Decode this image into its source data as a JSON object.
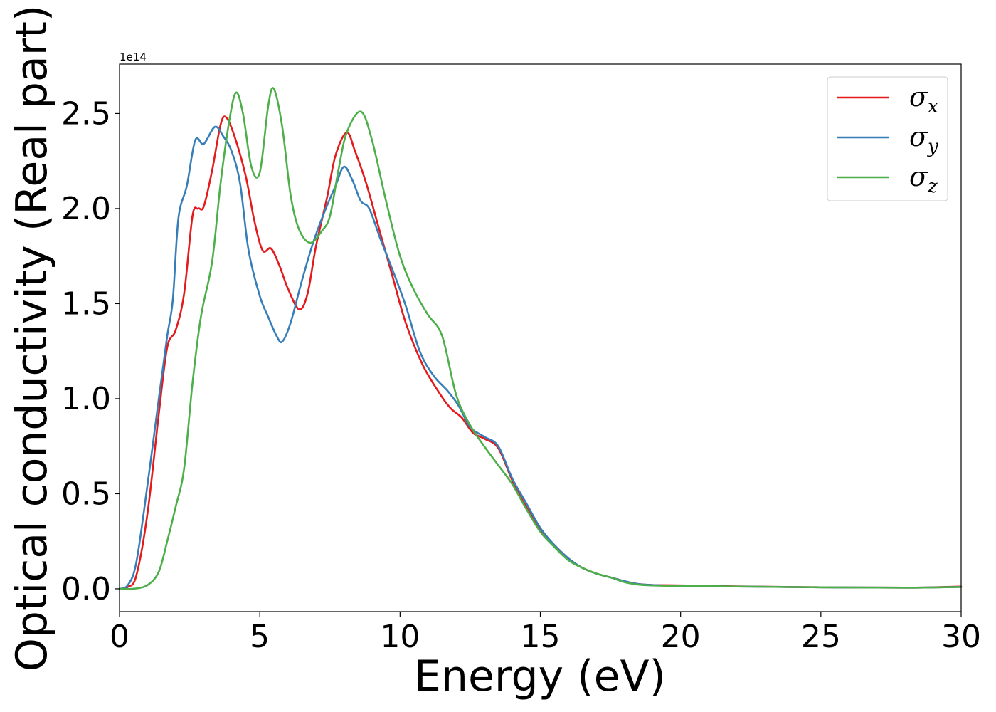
{
  "chart_data": {
    "type": "line",
    "xlabel": "Energy (eV)",
    "ylabel": "Optical conductivity (Real part)",
    "y_offset_text": "1e14",
    "xlim": [
      0,
      30
    ],
    "ylim": [
      -0.12,
      2.76
    ],
    "x_ticks": [
      0,
      5,
      10,
      15,
      20,
      25,
      30
    ],
    "y_ticks": [
      0.0,
      0.5,
      1.0,
      1.5,
      2.0,
      2.5
    ],
    "grid": false,
    "legend_position": "top-right",
    "series": [
      {
        "name": "σ",
        "subscript": "x",
        "color": "#e41a1c",
        "points": [
          [
            0,
            0
          ],
          [
            0.3,
            0.01
          ],
          [
            0.6,
            0.07
          ],
          [
            1.0,
            0.4
          ],
          [
            1.4,
            0.92
          ],
          [
            1.7,
            1.27
          ],
          [
            2.0,
            1.36
          ],
          [
            2.3,
            1.55
          ],
          [
            2.6,
            1.96
          ],
          [
            2.8,
            2.0
          ],
          [
            3.0,
            2.01
          ],
          [
            3.3,
            2.2
          ],
          [
            3.6,
            2.44
          ],
          [
            3.8,
            2.48
          ],
          [
            4.1,
            2.38
          ],
          [
            4.5,
            2.17
          ],
          [
            4.8,
            1.94
          ],
          [
            5.1,
            1.78
          ],
          [
            5.4,
            1.79
          ],
          [
            5.7,
            1.7
          ],
          [
            6.0,
            1.58
          ],
          [
            6.4,
            1.47
          ],
          [
            6.7,
            1.55
          ],
          [
            7.0,
            1.8
          ],
          [
            7.4,
            2.06
          ],
          [
            7.7,
            2.28
          ],
          [
            8.1,
            2.4
          ],
          [
            8.4,
            2.3
          ],
          [
            8.8,
            2.13
          ],
          [
            9.2,
            1.92
          ],
          [
            9.7,
            1.66
          ],
          [
            10.2,
            1.4
          ],
          [
            10.8,
            1.18
          ],
          [
            11.4,
            1.03
          ],
          [
            11.8,
            0.95
          ],
          [
            12.2,
            0.9
          ],
          [
            12.6,
            0.82
          ],
          [
            13.0,
            0.79
          ],
          [
            13.5,
            0.74
          ],
          [
            14.0,
            0.57
          ],
          [
            14.5,
            0.43
          ],
          [
            15.0,
            0.31
          ],
          [
            15.5,
            0.23
          ],
          [
            16.0,
            0.16
          ],
          [
            16.5,
            0.11
          ],
          [
            17.0,
            0.08
          ],
          [
            17.5,
            0.06
          ],
          [
            18.0,
            0.04
          ],
          [
            18.5,
            0.025
          ],
          [
            19.0,
            0.02
          ],
          [
            20.0,
            0.018
          ],
          [
            22.0,
            0.013
          ],
          [
            25.0,
            0.008
          ],
          [
            28.0,
            0.006
          ],
          [
            29.0,
            0.008
          ],
          [
            30.0,
            0.012
          ]
        ]
      },
      {
        "name": "σ",
        "subscript": "y",
        "color": "#377eb8",
        "points": [
          [
            0,
            0
          ],
          [
            0.3,
            0.02
          ],
          [
            0.6,
            0.14
          ],
          [
            1.0,
            0.55
          ],
          [
            1.4,
            1.0
          ],
          [
            1.7,
            1.33
          ],
          [
            1.9,
            1.52
          ],
          [
            2.1,
            1.95
          ],
          [
            2.4,
            2.12
          ],
          [
            2.7,
            2.36
          ],
          [
            3.0,
            2.34
          ],
          [
            3.4,
            2.43
          ],
          [
            3.7,
            2.38
          ],
          [
            4.0,
            2.3
          ],
          [
            4.3,
            2.13
          ],
          [
            4.6,
            1.78
          ],
          [
            5.0,
            1.54
          ],
          [
            5.3,
            1.43
          ],
          [
            5.6,
            1.33
          ],
          [
            5.8,
            1.3
          ],
          [
            6.1,
            1.4
          ],
          [
            6.5,
            1.62
          ],
          [
            6.9,
            1.82
          ],
          [
            7.3,
            1.98
          ],
          [
            7.7,
            2.12
          ],
          [
            8.0,
            2.22
          ],
          [
            8.3,
            2.15
          ],
          [
            8.6,
            2.04
          ],
          [
            8.9,
            2.0
          ],
          [
            9.3,
            1.84
          ],
          [
            9.7,
            1.69
          ],
          [
            10.2,
            1.49
          ],
          [
            10.7,
            1.25
          ],
          [
            11.2,
            1.12
          ],
          [
            11.7,
            1.04
          ],
          [
            12.1,
            0.96
          ],
          [
            12.5,
            0.85
          ],
          [
            13.0,
            0.8
          ],
          [
            13.5,
            0.75
          ],
          [
            14.0,
            0.58
          ],
          [
            14.5,
            0.45
          ],
          [
            15.0,
            0.32
          ],
          [
            15.5,
            0.23
          ],
          [
            16.0,
            0.16
          ],
          [
            16.5,
            0.11
          ],
          [
            17.0,
            0.08
          ],
          [
            17.5,
            0.06
          ],
          [
            18.0,
            0.04
          ],
          [
            18.5,
            0.025
          ],
          [
            19.0,
            0.02
          ],
          [
            20.0,
            0.015
          ],
          [
            22.0,
            0.012
          ],
          [
            25.0,
            0.008
          ],
          [
            28.0,
            0.006
          ],
          [
            30.0,
            0.01
          ]
        ]
      },
      {
        "name": "σ",
        "subscript": "z",
        "color": "#4daf4a",
        "points": [
          [
            0,
            0
          ],
          [
            0.5,
            0.0
          ],
          [
            1.0,
            0.02
          ],
          [
            1.4,
            0.09
          ],
          [
            1.7,
            0.25
          ],
          [
            2.0,
            0.43
          ],
          [
            2.3,
            0.63
          ],
          [
            2.6,
            1.08
          ],
          [
            2.9,
            1.43
          ],
          [
            3.3,
            1.72
          ],
          [
            3.6,
            2.13
          ],
          [
            3.9,
            2.45
          ],
          [
            4.15,
            2.61
          ],
          [
            4.4,
            2.5
          ],
          [
            4.7,
            2.22
          ],
          [
            5.0,
            2.19
          ],
          [
            5.3,
            2.54
          ],
          [
            5.5,
            2.63
          ],
          [
            5.8,
            2.43
          ],
          [
            6.1,
            2.07
          ],
          [
            6.4,
            1.89
          ],
          [
            6.8,
            1.82
          ],
          [
            7.2,
            1.88
          ],
          [
            7.5,
            1.96
          ],
          [
            7.8,
            2.2
          ],
          [
            8.1,
            2.4
          ],
          [
            8.6,
            2.51
          ],
          [
            9.0,
            2.36
          ],
          [
            9.5,
            2.04
          ],
          [
            10.0,
            1.75
          ],
          [
            10.5,
            1.57
          ],
          [
            11.0,
            1.44
          ],
          [
            11.5,
            1.33
          ],
          [
            12.0,
            1.02
          ],
          [
            12.5,
            0.86
          ],
          [
            13.0,
            0.75
          ],
          [
            13.5,
            0.65
          ],
          [
            14.0,
            0.55
          ],
          [
            14.5,
            0.42
          ],
          [
            15.0,
            0.3
          ],
          [
            15.5,
            0.22
          ],
          [
            16.0,
            0.15
          ],
          [
            16.5,
            0.11
          ],
          [
            17.0,
            0.08
          ],
          [
            17.5,
            0.06
          ],
          [
            18.0,
            0.035
          ],
          [
            18.5,
            0.022
          ],
          [
            19.0,
            0.018
          ],
          [
            20.0,
            0.015
          ],
          [
            22.0,
            0.012
          ],
          [
            25.0,
            0.008
          ],
          [
            28.0,
            0.006
          ],
          [
            30.0,
            0.01
          ]
        ]
      }
    ]
  }
}
